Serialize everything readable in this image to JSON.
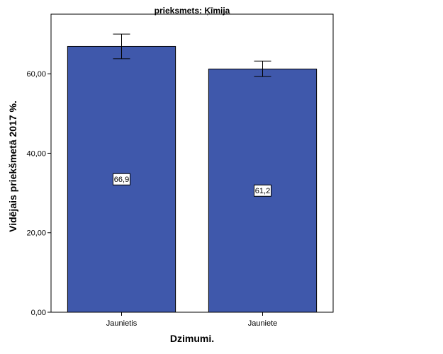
{
  "chart_data": {
    "type": "bar",
    "title": "prieksmets: Ķīmija",
    "xlabel": "Dzimumi.",
    "ylabel": "Vidējais priekšmetā 2017 %.",
    "categories": [
      "Jaunietis",
      "Jauniete"
    ],
    "values": [
      66.9,
      61.2
    ],
    "value_labels": [
      "66,9",
      "61,2"
    ],
    "error_bars": [
      {
        "low": 63.8,
        "high": 70.0
      },
      {
        "low": 59.3,
        "high": 63.2
      }
    ],
    "ylim": [
      0,
      75
    ],
    "yticks": [
      0,
      20,
      40,
      60
    ],
    "ytick_labels": [
      "0,00",
      "20,00",
      "40,00",
      "60,00"
    ],
    "grid": false,
    "bar_color": "#3f58ab",
    "bar_edge_color": "#000000"
  }
}
